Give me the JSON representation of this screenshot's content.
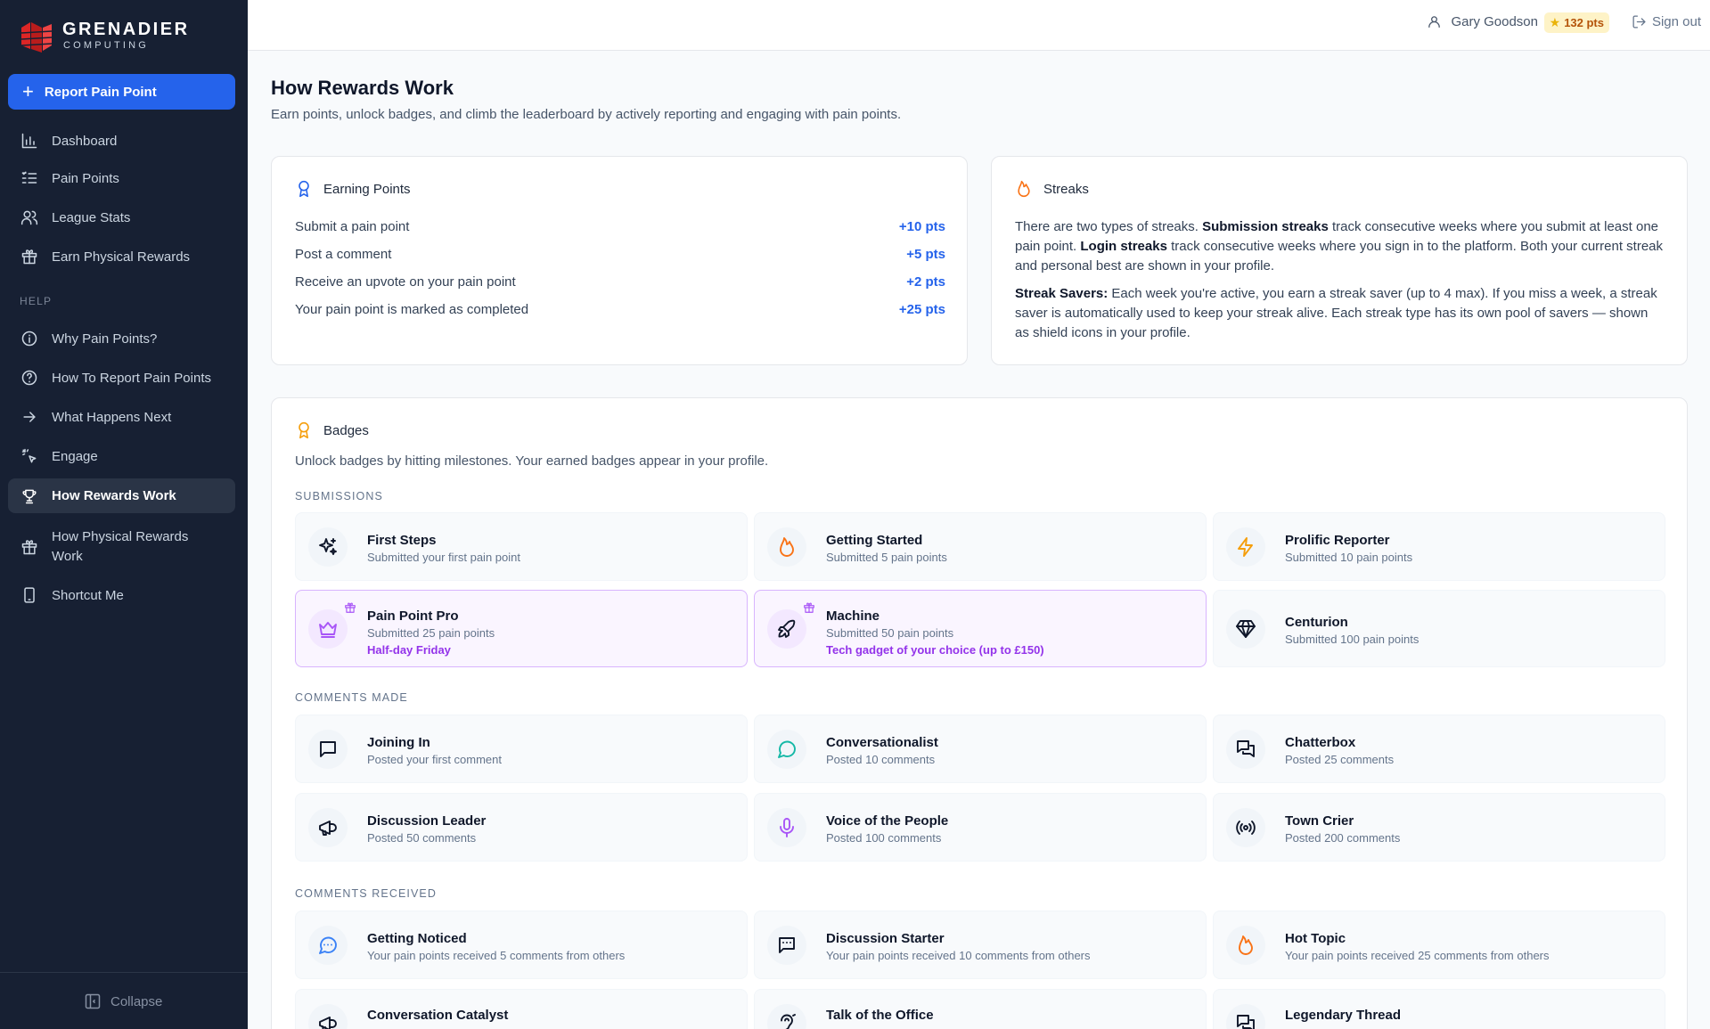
{
  "sidebar": {
    "logo": {
      "name": "GRENADIER",
      "tagline": "COMPUTING"
    },
    "report_button": "Report Pain Point",
    "items": [
      {
        "label": "Dashboard",
        "icon": "bar-chart-icon"
      },
      {
        "label": "Pain Points",
        "icon": "list-icon"
      },
      {
        "label": "League Stats",
        "icon": "users-icon"
      },
      {
        "label": "Earn Physical Rewards",
        "icon": "gift-icon"
      }
    ],
    "help_label": "HELP",
    "help_items": [
      {
        "label": "Why Pain Points?",
        "icon": "info-icon"
      },
      {
        "label": "How To Report Pain Points",
        "icon": "help-circle-icon"
      },
      {
        "label": "What Happens Next",
        "icon": "arrow-right-icon"
      },
      {
        "label": "Engage",
        "icon": "pointer-icon"
      },
      {
        "label": "How Rewards Work",
        "icon": "trophy-icon",
        "active": true
      },
      {
        "label": "How Physical Rewards Work",
        "icon": "gift-icon"
      },
      {
        "label": "Shortcut Me",
        "icon": "phone-icon"
      }
    ],
    "collapse": "Collapse"
  },
  "header": {
    "user_name": "Gary Goodson",
    "points": "132 pts",
    "sign_out": "Sign out"
  },
  "main": {
    "title": "How Rewards Work",
    "subtitle": "Earn points, unlock badges, and climb the leaderboard by actively reporting and engaging with pain points.",
    "earning": {
      "title": "Earning Points",
      "rows": [
        {
          "label": "Submit a pain point",
          "points": "+10 pts"
        },
        {
          "label": "Post a comment",
          "points": "+5 pts"
        },
        {
          "label": "Receive an upvote on your pain point",
          "points": "+2 pts"
        },
        {
          "label": "Your pain point is marked as completed",
          "points": "+25 pts"
        }
      ]
    },
    "streaks": {
      "title": "Streaks",
      "p1_a": "There are two types of streaks. ",
      "p1_b": "Submission streaks",
      "p1_c": " track consecutive weeks where you submit at least one pain point. ",
      "p1_d": "Login streaks",
      "p1_e": " track consecutive weeks where you sign in to the platform. Both your current streak and personal best are shown in your profile.",
      "p2_a": "Streak Savers:",
      "p2_b": " Each week you're active, you earn a streak saver (up to 4 max). If you miss a week, a streak saver is automatically used to keep your streak alive. Each streak type has its own pool of savers — shown as shield icons in your profile."
    },
    "badges": {
      "title": "Badges",
      "subtitle": "Unlock badges by hitting milestones. Your earned badges appear in your profile.",
      "groups": [
        {
          "label": "SUBMISSIONS",
          "items": [
            {
              "name": "First Steps",
              "desc": "Submitted your first pain point",
              "icon": "sparkles-icon",
              "color": "#0f172a"
            },
            {
              "name": "Getting Started",
              "desc": "Submitted 5 pain points",
              "icon": "flame-icon",
              "color": "#f97316"
            },
            {
              "name": "Prolific Reporter",
              "desc": "Submitted 10 pain points",
              "icon": "lightning-icon",
              "color": "#f59e0b"
            },
            {
              "name": "Pain Point Pro",
              "desc": "Submitted 25 pain points",
              "reward": "Half-day Friday",
              "icon": "crown-icon",
              "color": "#a855f7"
            },
            {
              "name": "Machine",
              "desc": "Submitted 50 pain points",
              "reward": "Tech gadget of your choice (up to £150)",
              "icon": "rocket-icon",
              "color": "#0f172a"
            },
            {
              "name": "Centurion",
              "desc": "Submitted 100 pain points",
              "icon": "diamond-icon",
              "color": "#0f172a"
            }
          ]
        },
        {
          "label": "COMMENTS MADE",
          "items": [
            {
              "name": "Joining In",
              "desc": "Posted your first comment",
              "icon": "message-square-icon",
              "color": "#0f172a"
            },
            {
              "name": "Conversationalist",
              "desc": "Posted 10 comments",
              "icon": "message-circle-icon",
              "color": "#14b8a6"
            },
            {
              "name": "Chatterbox",
              "desc": "Posted 25 comments",
              "icon": "messages-icon",
              "color": "#0f172a"
            },
            {
              "name": "Discussion Leader",
              "desc": "Posted 50 comments",
              "icon": "megaphone-icon",
              "color": "#0f172a"
            },
            {
              "name": "Voice of the People",
              "desc": "Posted 100 comments",
              "icon": "microphone-icon",
              "color": "#a855f7"
            },
            {
              "name": "Town Crier",
              "desc": "Posted 200 comments",
              "icon": "radio-icon",
              "color": "#0f172a"
            }
          ]
        },
        {
          "label": "COMMENTS RECEIVED",
          "items": [
            {
              "name": "Getting Noticed",
              "desc": "Your pain points received 5 comments from others",
              "icon": "message-dots-icon",
              "color": "#3b82f6"
            },
            {
              "name": "Discussion Starter",
              "desc": "Your pain points received 10 comments from others",
              "icon": "message-lines-icon",
              "color": "#0f172a"
            },
            {
              "name": "Hot Topic",
              "desc": "Your pain points received 25 comments from others",
              "icon": "flame-icon",
              "color": "#f97316"
            },
            {
              "name": "Conversation Catalyst",
              "desc": "",
              "icon": "megaphone-icon",
              "color": "#0f172a"
            },
            {
              "name": "Talk of the Office",
              "desc": "",
              "icon": "ear-icon",
              "color": "#0f172a"
            },
            {
              "name": "Legendary Thread",
              "desc": "",
              "icon": "messages-icon",
              "color": "#0f172a"
            }
          ]
        }
      ]
    }
  }
}
